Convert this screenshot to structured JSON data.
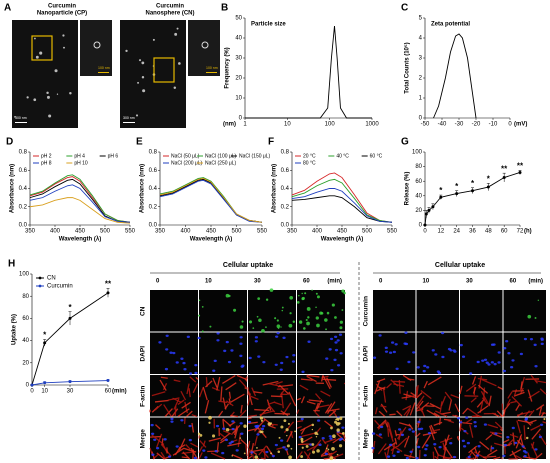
{
  "image_panel": {
    "label": "A",
    "groups": [
      {
        "title_lines": [
          "Curcumin",
          "Nanoparticle (CP)"
        ],
        "scale_labels": [
          "300 nm",
          "100 nm"
        ]
      },
      {
        "title_lines": [
          "Curcumin",
          "Nanosphere (CN)"
        ],
        "scale_labels": [
          "300 nm",
          "100 nm"
        ]
      }
    ]
  },
  "uptake_panels": [
    {
      "title": "Cellular uptake",
      "columns": [
        "0",
        "10",
        "30",
        "60"
      ],
      "unit": "(min)",
      "rows": [
        "CN",
        "DAPI",
        "F-actin",
        "Merge"
      ]
    },
    {
      "title": "Cellular uptake",
      "columns": [
        "0",
        "10",
        "30",
        "60"
      ],
      "unit": "(min)",
      "rows": [
        "Curcumin",
        "DAPI",
        "F-actin",
        "Merge"
      ]
    }
  ],
  "chart_data": [
    {
      "type": "line",
      "label": "B",
      "title": "Particle size",
      "ylabel": "Frequency (%)",
      "xunit": "(nm)",
      "xscale": "log",
      "x": [
        1,
        60,
        90,
        110,
        130,
        150,
        180,
        250,
        1000
      ],
      "series": [
        {
          "name": null,
          "color": "#000000",
          "values": [
            0,
            0,
            5,
            30,
            46,
            30,
            5,
            0,
            0
          ]
        }
      ],
      "xlim": [
        1,
        1000
      ],
      "xticks": [
        1,
        10,
        100,
        1000
      ],
      "ylim": [
        0,
        50
      ],
      "yticks": [
        0,
        10,
        20,
        30,
        40,
        50
      ]
    },
    {
      "type": "line",
      "label": "C",
      "title": "Zeta potential",
      "ylabel": "Total Counts (10⁵)",
      "xunit": "(mV)",
      "x": [
        -45,
        -42,
        -38,
        -35,
        -32,
        -30,
        -28,
        -25,
        -22,
        -20
      ],
      "series": [
        {
          "name": null,
          "color": "#000000",
          "values": [
            0,
            0.6,
            2,
            3.3,
            4.1,
            4.2,
            4,
            3,
            1.2,
            0
          ]
        }
      ],
      "xlim": [
        -50,
        0
      ],
      "xticks": [
        -50,
        -40,
        -30,
        -20,
        -10,
        0
      ],
      "ylim": [
        0,
        5
      ],
      "yticks": [
        0,
        1,
        2,
        3,
        4,
        5
      ]
    },
    {
      "type": "line",
      "label": "D",
      "ylabel": "Absorbance (nm)",
      "xlabel": "Wavelength (λ)",
      "legend": "top",
      "x": [
        350,
        375,
        400,
        425,
        435,
        450,
        475,
        500,
        525,
        550
      ],
      "series": [
        {
          "name": "pH 2",
          "color": "#d62728",
          "values": [
            0.32,
            0.36,
            0.45,
            0.52,
            0.53,
            0.48,
            0.3,
            0.12,
            0.05,
            0.03
          ]
        },
        {
          "name": "pH 4",
          "color": "#2ca02c",
          "values": [
            0.33,
            0.37,
            0.46,
            0.54,
            0.55,
            0.5,
            0.32,
            0.12,
            0.05,
            0.03
          ]
        },
        {
          "name": "pH 6",
          "color": "#000000",
          "values": [
            0.3,
            0.34,
            0.42,
            0.49,
            0.5,
            0.45,
            0.28,
            0.1,
            0.04,
            0.03
          ]
        },
        {
          "name": "pH 8",
          "color": "#1f3fbf",
          "values": [
            0.27,
            0.3,
            0.37,
            0.43,
            0.44,
            0.4,
            0.25,
            0.09,
            0.04,
            0.03
          ]
        },
        {
          "name": "pH 10",
          "color": "#d9a020",
          "values": [
            0.2,
            0.22,
            0.27,
            0.3,
            0.3,
            0.27,
            0.17,
            0.07,
            0.03,
            0.02
          ]
        }
      ],
      "xlim": [
        350,
        550
      ],
      "xticks": [
        350,
        400,
        450,
        500,
        550
      ],
      "ylim": [
        0,
        0.8
      ],
      "yticks": [
        {
          "value": 0,
          "label": "0.0"
        },
        0.2,
        0.4,
        0.6,
        0.8
      ]
    },
    {
      "type": "line",
      "label": "E",
      "ylabel": "Absorbance (nm)",
      "xlabel": "Wavelength (λ)",
      "legend": "top",
      "x": [
        350,
        375,
        400,
        425,
        435,
        450,
        475,
        500,
        525,
        550
      ],
      "series": [
        {
          "name": "NaCl (50 μL)",
          "color": "#d62728",
          "values": [
            0.33,
            0.36,
            0.43,
            0.5,
            0.51,
            0.47,
            0.3,
            0.12,
            0.05,
            0.03
          ]
        },
        {
          "name": "NaCl (100 μL)",
          "color": "#2ca02c",
          "values": [
            0.34,
            0.37,
            0.44,
            0.51,
            0.52,
            0.48,
            0.31,
            0.12,
            0.05,
            0.03
          ]
        },
        {
          "name": "NaCl (150 μL)",
          "color": "#000000",
          "values": [
            0.32,
            0.35,
            0.42,
            0.49,
            0.5,
            0.46,
            0.29,
            0.11,
            0.05,
            0.03
          ]
        },
        {
          "name": "NaCl (200 μL)",
          "color": "#1f3fbf",
          "values": [
            0.31,
            0.34,
            0.41,
            0.48,
            0.49,
            0.45,
            0.28,
            0.11,
            0.04,
            0.03
          ]
        },
        {
          "name": "NaCl (250 μL)",
          "color": "#d9a020",
          "values": [
            0.33,
            0.36,
            0.43,
            0.5,
            0.51,
            0.47,
            0.3,
            0.12,
            0.05,
            0.03
          ]
        }
      ],
      "xlim": [
        350,
        550
      ],
      "xticks": [
        350,
        400,
        450,
        500,
        550
      ],
      "ylim": [
        0,
        0.8
      ],
      "yticks": [
        {
          "value": 0,
          "label": "0.0"
        },
        0.2,
        0.4,
        0.6,
        0.8
      ]
    },
    {
      "type": "line",
      "label": "F",
      "ylabel": "Absorbance (nm)",
      "xlabel": "Wavelength (λ)",
      "legend": "top",
      "x": [
        350,
        375,
        400,
        425,
        435,
        450,
        475,
        500,
        525,
        550
      ],
      "series": [
        {
          "name": "20 °C",
          "color": "#d62728",
          "values": [
            0.33,
            0.38,
            0.48,
            0.56,
            0.57,
            0.52,
            0.33,
            0.13,
            0.05,
            0.03
          ]
        },
        {
          "name": "40 °C",
          "color": "#2ca02c",
          "values": [
            0.31,
            0.35,
            0.43,
            0.49,
            0.5,
            0.46,
            0.29,
            0.11,
            0.05,
            0.03
          ]
        },
        {
          "name": "60 °C",
          "color": "#000000",
          "values": [
            0.27,
            0.28,
            0.3,
            0.32,
            0.32,
            0.3,
            0.2,
            0.08,
            0.04,
            0.03
          ]
        },
        {
          "name": "80 °C",
          "color": "#1f3fbf",
          "values": [
            0.29,
            0.31,
            0.36,
            0.4,
            0.4,
            0.37,
            0.24,
            0.1,
            0.04,
            0.03
          ]
        }
      ],
      "xlim": [
        350,
        550
      ],
      "xticks": [
        350,
        400,
        450,
        500,
        550
      ],
      "ylim": [
        0,
        0.8
      ],
      "yticks": [
        {
          "value": 0,
          "label": "0.0"
        },
        0.2,
        0.4,
        0.6,
        0.8
      ]
    },
    {
      "type": "line",
      "label": "G",
      "ylabel": "Release (%)",
      "xunit": "(h)",
      "markers": true,
      "x": [
        0,
        1,
        3,
        6,
        12,
        24,
        36,
        48,
        60,
        72
      ],
      "series": [
        {
          "name": null,
          "color": "#000000",
          "values": [
            0,
            15,
            20,
            25,
            38,
            43,
            47,
            52,
            65,
            72
          ],
          "errors": [
            0,
            5,
            4,
            4,
            3,
            4,
            4,
            5,
            6,
            3
          ]
        }
      ],
      "annotations": [
        {
          "x": 12,
          "text": "*"
        },
        {
          "x": 24,
          "text": "*"
        },
        {
          "x": 36,
          "text": "*"
        },
        {
          "x": 48,
          "text": "*"
        },
        {
          "x": 60,
          "text": "**"
        },
        {
          "x": 72,
          "text": "**"
        }
      ],
      "xlim": [
        0,
        72
      ],
      "xticks": [
        0,
        12,
        24,
        36,
        48,
        60,
        72
      ],
      "ylim": [
        0,
        100
      ],
      "yticks": [
        0,
        20,
        40,
        60,
        80,
        100
      ]
    },
    {
      "type": "line",
      "label": "H",
      "ylabel": "Uptake (%)",
      "xunit": "(min)",
      "markers": true,
      "legend": "upper left",
      "x": [
        0,
        10,
        30,
        60
      ],
      "series": [
        {
          "name": "CN",
          "color": "#000000",
          "values": [
            0,
            38,
            60,
            83
          ],
          "errors": [
            0,
            3,
            6,
            4
          ]
        },
        {
          "name": "Curcumin",
          "color": "#1f3fbf",
          "values": [
            0,
            2,
            3,
            4
          ],
          "errors": [
            0,
            1,
            1,
            1
          ]
        }
      ],
      "annotations": [
        {
          "x": 10,
          "text": "*"
        },
        {
          "x": 30,
          "text": "*"
        },
        {
          "x": 60,
          "text": "**"
        }
      ],
      "xlim": [
        0,
        60
      ],
      "xticks": [
        0,
        10,
        30,
        60
      ],
      "ylim": [
        0,
        100
      ],
      "yticks": [
        0,
        20,
        40,
        60,
        80,
        100
      ]
    }
  ]
}
